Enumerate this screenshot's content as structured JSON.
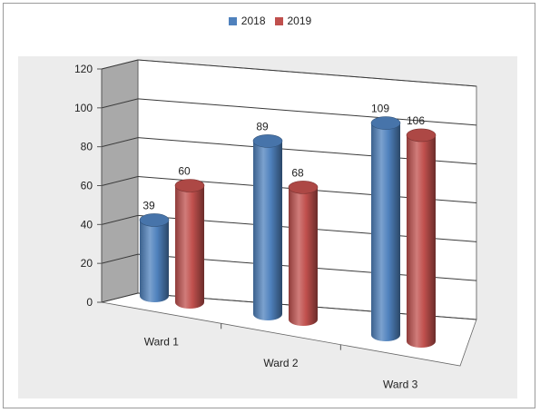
{
  "colors": {
    "series_2018": "#4f81bd",
    "series_2019": "#c0504d",
    "plot_area": "#ececec",
    "grid": "#3a3a3a"
  },
  "chart_data": {
    "type": "bar",
    "style": "3d-cylinder",
    "categories": [
      "Ward 1",
      "Ward 2",
      "Ward 3"
    ],
    "series": [
      {
        "name": "2018",
        "values": [
          39,
          89,
          109
        ]
      },
      {
        "name": "2019",
        "values": [
          60,
          68,
          106
        ]
      }
    ],
    "ylim": [
      0,
      120
    ],
    "yticks": [
      0,
      20,
      40,
      60,
      80,
      100,
      120
    ],
    "grid": true,
    "legend_position": "top",
    "data_labels": true
  }
}
